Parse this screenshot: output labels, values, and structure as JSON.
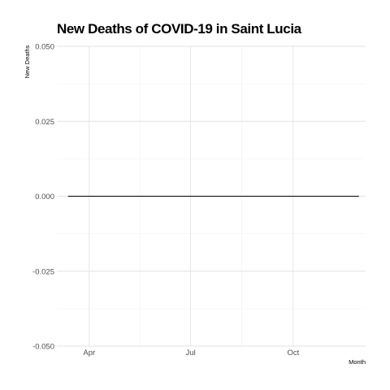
{
  "chart_data": {
    "type": "line",
    "title": "New Deaths of COVID-19 in Saint Lucia",
    "xlabel": "Month",
    "ylabel": "New Deaths",
    "x_ticks": [
      "Apr",
      "Jul",
      "Oct"
    ],
    "y_ticks": [
      "0.050",
      "0.025",
      "0.000",
      "-0.025",
      "-0.050"
    ],
    "y_tick_values": [
      0.05,
      0.025,
      0,
      -0.025,
      -0.05
    ],
    "ylim": [
      -0.05,
      0.05
    ],
    "xlim": [
      "2020-03-03",
      "2020-12-05"
    ],
    "x_tick_dates": [
      "2020-04-01",
      "2020-07-01",
      "2020-10-01"
    ],
    "series": [
      {
        "x": [
          "2020-03-13",
          "2020-11-29"
        ],
        "values": [
          0,
          0
        ],
        "color": "#000000"
      }
    ],
    "grid": true
  }
}
